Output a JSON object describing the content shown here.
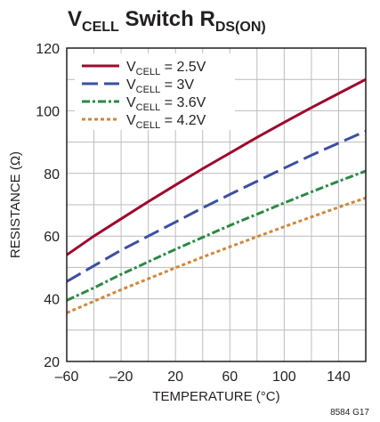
{
  "chart_data": {
    "type": "line",
    "title": {
      "main": "V",
      "sub1": "CELL",
      "mid": " Switch R",
      "sub2": "DS(ON)"
    },
    "xlabel": "TEMPERATURE (°C)",
    "ylabel": "RESISTANCE (Ω)",
    "xlim": [
      -60,
      160
    ],
    "ylim": [
      20,
      120
    ],
    "xticks": [
      -60,
      -20,
      20,
      60,
      100,
      140
    ],
    "xtick_labels": [
      "–60",
      "–20",
      "20",
      "60",
      "100",
      "140"
    ],
    "yticks": [
      20,
      40,
      60,
      80,
      100,
      120
    ],
    "ytick_labels": [
      "20",
      "40",
      "60",
      "80",
      "100",
      "120"
    ],
    "grid": true,
    "legend_position": "top-left",
    "series": [
      {
        "name_main": "V",
        "name_sub": "CELL",
        "name_rest": " = 2.5V",
        "color": "#9e0a2e",
        "dash": "none",
        "x": [
          -60,
          -40,
          -20,
          0,
          20,
          40,
          60,
          80,
          100,
          120,
          140,
          160
        ],
        "y": [
          54,
          60,
          65.5,
          71,
          76.3,
          81.5,
          86.5,
          91.5,
          96.3,
          101,
          105.5,
          110
        ]
      },
      {
        "name_main": "V",
        "name_sub": "CELL",
        "name_rest": " = 3V",
        "color": "#3b4fa3",
        "dash": "18,7",
        "x": [
          -60,
          -40,
          -20,
          0,
          20,
          40,
          60,
          80,
          100,
          120,
          140,
          160
        ],
        "y": [
          45.5,
          50.5,
          55.5,
          60,
          64.5,
          69,
          73.3,
          77.5,
          81.7,
          85.8,
          89.7,
          93.5
        ]
      },
      {
        "name_main": "V",
        "name_sub": "CELL",
        "name_rest": " = 3.6V",
        "color": "#2a8a43",
        "dash": "9,3,3,3",
        "x": [
          -60,
          -40,
          -20,
          0,
          20,
          40,
          60,
          80,
          100,
          120,
          140,
          160
        ],
        "y": [
          39.5,
          43.5,
          47.8,
          51.8,
          55.8,
          59.6,
          63.4,
          67,
          70.6,
          74.1,
          77.5,
          80.8
        ]
      },
      {
        "name_main": "V",
        "name_sub": "CELL",
        "name_rest": " = 4.2V",
        "color": "#d0863a",
        "dash": "4,3",
        "x": [
          -60,
          -40,
          -20,
          0,
          20,
          40,
          60,
          80,
          100,
          120,
          140,
          160
        ],
        "y": [
          35.5,
          39.2,
          42.9,
          46.4,
          49.9,
          53.3,
          56.6,
          59.8,
          63,
          66.1,
          69.2,
          72.2
        ]
      }
    ]
  },
  "figure_code": "8584 G17"
}
